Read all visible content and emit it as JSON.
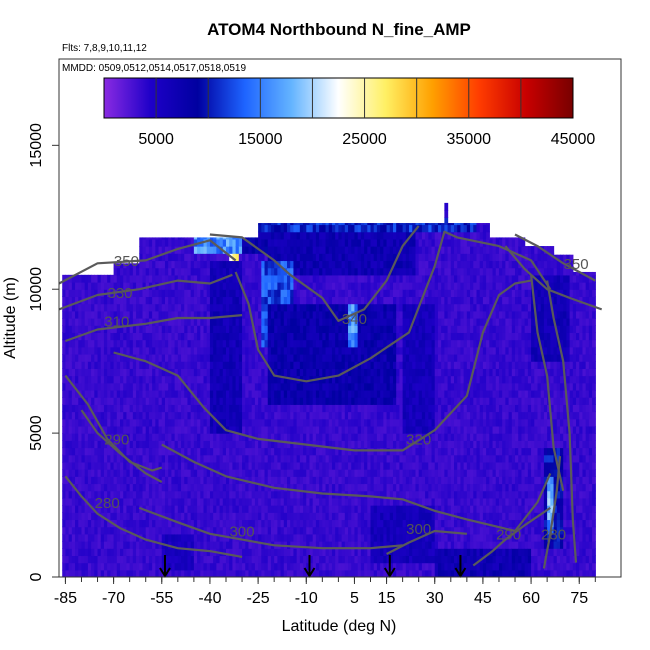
{
  "chart_data": {
    "type": "heatmap",
    "title": "ATOM4 Northbound N_fine_AMP",
    "subtitle_flights": "Flts: 7,8,9,10,11,12",
    "subtitle_dates": "MMDD: 0509,0512,0514,0517,0518,0519",
    "xlabel": "Latitude (deg N)",
    "ylabel": "Altitude (m)",
    "xlim": [
      -87,
      88
    ],
    "ylim": [
      0,
      18000
    ],
    "x_ticks": [
      -85,
      -70,
      -55,
      -40,
      -25,
      -10,
      5,
      15,
      30,
      45,
      60,
      75
    ],
    "x_tick_labels": [
      "-85",
      "-70",
      "-55",
      "-40",
      "-25",
      "-10",
      "5",
      "15",
      "30",
      "45",
      "60",
      "75"
    ],
    "y_ticks": [
      0,
      5000,
      10000,
      15000
    ],
    "y_tick_labels": [
      "0",
      "5000",
      "10000",
      "15000"
    ],
    "colorbar": {
      "min": 0,
      "max": 45000,
      "ticks": [
        5000,
        15000,
        25000,
        35000,
        45000
      ],
      "tick_labels": [
        "5000",
        "15000",
        "25000",
        "35000",
        "45000"
      ],
      "stops": [
        "#8a2be2",
        "#1e00c8",
        "#0000a0",
        "#1e64ff",
        "#64b4ff",
        "#ffffff",
        "#fff064",
        "#ffa000",
        "#ff3c00",
        "#c80000",
        "#780000"
      ]
    },
    "background_value": 3500,
    "coverage_columns": [
      {
        "lat": -86,
        "alt_max": 10500
      },
      {
        "lat": -70,
        "alt_max": 10900
      },
      {
        "lat": -63,
        "alt_max": 10900
      },
      {
        "lat": -62,
        "alt_max": 11800
      },
      {
        "lat": -45,
        "alt_max": 11800
      },
      {
        "lat": -25,
        "alt_max": 12300
      },
      {
        "lat": 15,
        "alt_max": 12300
      },
      {
        "lat": 30,
        "alt_max": 12300
      },
      {
        "lat": 33,
        "alt_max": 13000
      },
      {
        "lat": 34,
        "alt_max": 12300
      },
      {
        "lat": 46,
        "alt_max": 12300
      },
      {
        "lat": 47,
        "alt_max": 11800
      },
      {
        "lat": 58,
        "alt_max": 11500
      },
      {
        "lat": 67,
        "alt_max": 11200
      },
      {
        "lat": 73,
        "alt_max": 10600
      },
      {
        "lat": 80,
        "alt_max": 10300
      }
    ],
    "features": [
      {
        "lat_min": -30,
        "lat_max": 43,
        "alt_min": 11900,
        "alt_max": 12350,
        "value": 11000
      },
      {
        "lat_min": -45,
        "lat_max": -25,
        "alt_min": 11100,
        "alt_max": 11900,
        "value": 15500
      },
      {
        "lat_min": -34,
        "lat_max": -31,
        "alt_min": 10300,
        "alt_max": 11100,
        "value": 25000
      },
      {
        "lat_min": -30,
        "lat_max": -22,
        "alt_min": 11100,
        "alt_max": 11900,
        "value": 8000
      },
      {
        "lat_min": -22,
        "lat_max": 24,
        "alt_min": 10500,
        "alt_max": 11900,
        "value": 7000
      },
      {
        "lat_min": -40,
        "lat_max": -30,
        "alt_min": 5000,
        "alt_max": 11000,
        "value": 6500
      },
      {
        "lat_min": -24,
        "lat_max": -14,
        "alt_min": 8000,
        "alt_max": 11000,
        "value": 12500
      },
      {
        "lat_min": -22,
        "lat_max": 18,
        "alt_min": 6000,
        "alt_max": 9500,
        "value": 7500
      },
      {
        "lat_min": 3,
        "lat_max": 6,
        "alt_min": 8000,
        "alt_max": 9500,
        "value": 16000
      },
      {
        "lat_min": 20,
        "lat_max": 30,
        "alt_min": 5000,
        "alt_max": 9500,
        "value": 6000
      },
      {
        "lat_min": 60,
        "lat_max": 72,
        "alt_min": 7500,
        "alt_max": 10300,
        "value": 6500
      },
      {
        "lat_min": 64,
        "lat_max": 70,
        "alt_min": 1000,
        "alt_max": 4500,
        "value": 9500
      },
      {
        "lat_min": 65,
        "lat_max": 67,
        "alt_min": 1500,
        "alt_max": 3500,
        "value": 17000
      },
      {
        "lat_min": 30,
        "lat_max": 60,
        "alt_min": 0,
        "alt_max": 800,
        "value": 7000
      },
      {
        "lat_min": -55,
        "lat_max": -45,
        "alt_min": 100,
        "alt_max": 1500,
        "value": 5500
      },
      {
        "lat_min": 10,
        "lat_max": 30,
        "alt_min": 400,
        "alt_max": 2500,
        "value": 6000
      }
    ],
    "contours": [
      {
        "label": "350",
        "label_at": [
          -66,
          10800
        ],
        "points": [
          [
            -87,
            10200
          ],
          [
            -75,
            10900
          ],
          [
            -60,
            11000
          ],
          [
            -50,
            11400
          ],
          [
            -40,
            11700
          ],
          [
            -32,
            11000
          ]
        ]
      },
      {
        "label": "330",
        "label_at": [
          -68,
          9700
        ],
        "points": [
          [
            -87,
            9300
          ],
          [
            -75,
            9800
          ],
          [
            -62,
            10000
          ],
          [
            -50,
            10300
          ],
          [
            -40,
            10200
          ],
          [
            -33,
            10500
          ]
        ]
      },
      {
        "label": "310",
        "label_at": [
          -69,
          8700
        ],
        "points": [
          [
            -85,
            8200
          ],
          [
            -75,
            8600
          ],
          [
            -60,
            8800
          ],
          [
            -50,
            9000
          ],
          [
            -40,
            9000
          ],
          [
            -30,
            9100
          ]
        ]
      },
      {
        "label": "340",
        "label_at": [
          5,
          8800
        ],
        "points": [
          [
            -40,
            11900
          ],
          [
            -30,
            11800
          ],
          [
            -20,
            11000
          ],
          [
            -15,
            10500
          ],
          [
            -5,
            9700
          ],
          [
            0,
            8900
          ],
          [
            8,
            9300
          ],
          [
            15,
            10300
          ],
          [
            20,
            11500
          ],
          [
            25,
            12200
          ]
        ]
      },
      {
        "label": "",
        "label_at": [
          0,
          0
        ],
        "points": [
          [
            -32,
            10600
          ],
          [
            -28,
            9500
          ],
          [
            -25,
            7900
          ],
          [
            -20,
            7000
          ],
          [
            -10,
            6800
          ],
          [
            0,
            7000
          ],
          [
            10,
            7600
          ],
          [
            22,
            8500
          ],
          [
            30,
            10800
          ],
          [
            33,
            12000
          ],
          [
            37,
            11800
          ],
          [
            50,
            11500
          ],
          [
            60,
            11000
          ],
          [
            66,
            10000
          ]
        ]
      },
      {
        "label": "350",
        "label_at": [
          74,
          10700
        ],
        "points": [
          [
            55,
            11900
          ],
          [
            62,
            11500
          ],
          [
            70,
            10900
          ],
          [
            80,
            10300
          ]
        ]
      },
      {
        "label": "",
        "label_at": [
          0,
          0
        ],
        "points": [
          [
            52,
            11500
          ],
          [
            58,
            10700
          ],
          [
            65,
            10000
          ],
          [
            72,
            9700
          ],
          [
            82,
            9300
          ]
        ]
      },
      {
        "label": "",
        "label_at": [
          0,
          0
        ],
        "points": [
          [
            60,
            10500
          ],
          [
            62,
            8500
          ],
          [
            65,
            7000
          ],
          [
            67,
            4500
          ],
          [
            70,
            3000
          ]
        ]
      },
      {
        "label": "",
        "label_at": [
          0,
          0
        ],
        "points": [
          [
            65,
            10300
          ],
          [
            67,
            9000
          ],
          [
            70,
            7500
          ],
          [
            72,
            5000
          ],
          [
            73,
            2000
          ],
          [
            74,
            500
          ]
        ]
      },
      {
        "label": "320",
        "label_at": [
          25,
          4600
        ],
        "points": [
          [
            -70,
            7800
          ],
          [
            -60,
            7500
          ],
          [
            -50,
            7000
          ],
          [
            -42,
            5900
          ],
          [
            -35,
            5100
          ],
          [
            -25,
            4800
          ],
          [
            -10,
            4600
          ],
          [
            5,
            4400
          ],
          [
            20,
            4400
          ],
          [
            30,
            5100
          ],
          [
            40,
            6300
          ],
          [
            45,
            8500
          ],
          [
            50,
            9800
          ],
          [
            55,
            10200
          ],
          [
            60,
            10300
          ]
        ]
      },
      {
        "label": "",
        "label_at": [
          0,
          0
        ],
        "points": [
          [
            -85,
            7000
          ],
          [
            -78,
            6000
          ],
          [
            -72,
            4800
          ],
          [
            -65,
            4000
          ],
          [
            -58,
            3700
          ],
          [
            -55,
            3800
          ]
        ]
      },
      {
        "label": "290",
        "label_at": [
          -69,
          4600
        ],
        "points": [
          [
            -80,
            5800
          ],
          [
            -75,
            5000
          ],
          [
            -68,
            4300
          ],
          [
            -60,
            3600
          ],
          [
            -55,
            3300
          ]
        ]
      },
      {
        "label": "",
        "label_at": [
          0,
          0
        ],
        "points": [
          [
            -55,
            4600
          ],
          [
            -45,
            4000
          ],
          [
            -35,
            3500
          ],
          [
            -20,
            3100
          ],
          [
            -5,
            2900
          ],
          [
            10,
            2800
          ],
          [
            20,
            2700
          ],
          [
            30,
            2300
          ],
          [
            40,
            2000
          ],
          [
            55,
            1600
          ],
          [
            62,
            2600
          ],
          [
            66,
            3600
          ]
        ]
      },
      {
        "label": "280",
        "label_at": [
          -72,
          2400
        ],
        "points": [
          [
            -85,
            3500
          ],
          [
            -80,
            2800
          ],
          [
            -75,
            2200
          ],
          [
            -68,
            1700
          ],
          [
            -60,
            1300
          ],
          [
            -50,
            1000
          ],
          [
            -40,
            900
          ],
          [
            -30,
            700
          ]
        ]
      },
      {
        "label": "300",
        "label_at": [
          -30,
          1400
        ],
        "points": [
          [
            -62,
            2400
          ],
          [
            -50,
            1900
          ],
          [
            -40,
            1500
          ],
          [
            -30,
            1300
          ],
          [
            -20,
            1100
          ],
          [
            -5,
            1000
          ],
          [
            10,
            1000
          ],
          [
            20,
            1100
          ]
        ]
      },
      {
        "label": "300",
        "label_at": [
          25,
          1500
        ],
        "points": [
          [
            15,
            800
          ],
          [
            22,
            1200
          ],
          [
            30,
            1600
          ],
          [
            40,
            1500
          ]
        ]
      },
      {
        "label": "290",
        "label_at": [
          53,
          1300
        ],
        "points": [
          [
            42,
            400
          ],
          [
            48,
            900
          ],
          [
            52,
            1300
          ],
          [
            58,
            1800
          ],
          [
            62,
            2100
          ],
          [
            66,
            2400
          ]
        ]
      },
      {
        "label": "280",
        "label_at": [
          67,
          1300
        ],
        "points": [
          [
            64,
            300
          ],
          [
            66,
            1500
          ],
          [
            68,
            3000
          ],
          [
            69,
            4200
          ]
        ]
      }
    ],
    "flight_arrows_lat": [
      -54,
      -9,
      16,
      38
    ]
  }
}
